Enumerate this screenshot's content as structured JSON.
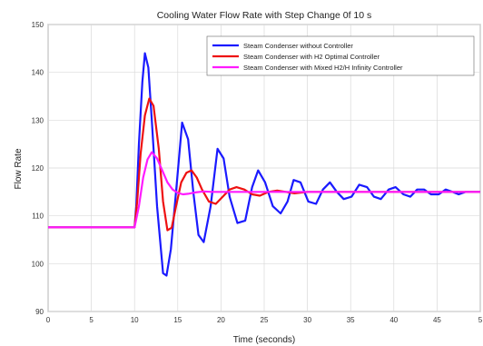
{
  "chart_data": {
    "type": "line",
    "title": "Cooling Water Flow Rate with Step Change 0f 10 s",
    "xlabel": "Time (seconds)",
    "ylabel": "Flow Rate",
    "xlim": [
      0,
      50
    ],
    "ylim": [
      90,
      150
    ],
    "xticks": [
      "0",
      "5",
      "10",
      "15",
      "20",
      "25",
      "30",
      "35",
      "40",
      "45",
      "5"
    ],
    "yticks": [
      "90",
      "100",
      "110",
      "120",
      "130",
      "140",
      "150"
    ],
    "grid": true,
    "legend_position": "top-right",
    "series": [
      {
        "name": "Steam Condenser without Controller",
        "color": "#1a1aff",
        "x": [
          0,
          10,
          10.2,
          10.5,
          10.9,
          11.2,
          11.6,
          12.0,
          12.6,
          13.3,
          13.7,
          14.2,
          14.8,
          15.5,
          16.2,
          16.8,
          17.4,
          18.0,
          18.8,
          19.6,
          20.3,
          21.0,
          21.9,
          22.8,
          23.6,
          24.3,
          25.1,
          26.0,
          26.9,
          27.7,
          28.4,
          29.2,
          30.1,
          31.0,
          31.8,
          32.6,
          33.4,
          34.2,
          35.1,
          36.0,
          36.9,
          37.7,
          38.5,
          39.4,
          40.2,
          41.1,
          41.9,
          42.7,
          43.5,
          44.3,
          45.2,
          46.0,
          46.8,
          47.5,
          48.3,
          49.0,
          50.0
        ],
        "y": [
          107.6,
          107.6,
          112,
          125,
          138,
          144,
          141,
          130,
          112,
          98,
          97.5,
          103,
          115,
          129.5,
          126,
          115,
          106,
          104.5,
          112,
          124,
          122,
          114,
          108.5,
          109,
          116,
          119.5,
          117,
          112,
          110.5,
          113,
          117.5,
          117,
          113,
          112.5,
          115.5,
          117,
          115,
          113.5,
          114,
          116.5,
          116,
          114,
          113.5,
          115.5,
          116,
          114.5,
          114,
          115.5,
          115.5,
          114.5,
          114.5,
          115.5,
          115,
          114.5,
          115,
          115,
          115
        ]
      },
      {
        "name": "Steam Condenser with H2 Optimal Controller",
        "color": "#ee1111",
        "x": [
          0,
          10,
          10.3,
          10.7,
          11.2,
          11.7,
          12.2,
          12.8,
          13.3,
          13.8,
          14.3,
          14.8,
          15.4,
          16.0,
          16.6,
          17.2,
          17.8,
          18.6,
          19.4,
          20.2,
          21.0,
          21.8,
          22.7,
          23.6,
          24.5,
          25.5,
          26.5,
          27.5,
          28.5,
          30.0,
          32.0,
          35.0,
          40.0,
          45.0,
          50.0
        ],
        "y": [
          107.6,
          107.6,
          113,
          123,
          131,
          134.5,
          133,
          124,
          113,
          107,
          107.5,
          112,
          117,
          119,
          119.5,
          118,
          115.5,
          113,
          112.5,
          114,
          115.5,
          116,
          115.5,
          114.5,
          114.2,
          115,
          115.3,
          115,
          114.7,
          115,
          115,
          115,
          115,
          115,
          115
        ]
      },
      {
        "name": "Steam Condenser with Mixed H2/H Infinity Controller",
        "color": "#ff1aff",
        "x": [
          0,
          10,
          10.5,
          11.0,
          11.5,
          12.0,
          12.6,
          13.2,
          13.8,
          14.4,
          15.0,
          15.6,
          16.2,
          17.0,
          18.0,
          19.0,
          20.0,
          22.0,
          25.0,
          30.0,
          40.0,
          50.0
        ],
        "y": [
          107.6,
          107.6,
          112,
          118,
          121.8,
          123.3,
          122,
          119.5,
          117,
          115.5,
          114.8,
          114.5,
          114.6,
          114.9,
          115.1,
          115,
          115,
          115,
          115,
          115,
          115,
          115
        ]
      }
    ]
  }
}
